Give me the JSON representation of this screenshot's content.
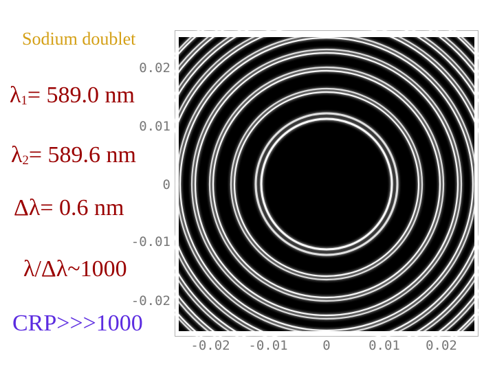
{
  "left_panel": {
    "title": "Sodium doublet",
    "lambda1": {
      "symbol": "λ",
      "sub": "1",
      "rest": "= 589.0 nm"
    },
    "lambda2": {
      "symbol": "λ",
      "sub": "2",
      "rest": "= 589.6 nm"
    },
    "delta": "Δλ= 0.6 nm",
    "ratio": "λ/Δλ~1000",
    "crp": "CRP>>>1000"
  },
  "plot": {
    "y_ticks": [
      "0.02",
      "0.01",
      "0",
      "-0.01",
      "-0.02"
    ],
    "x_ticks": [
      "-0.02",
      "-0.01",
      "0",
      "0.01",
      "0.02"
    ]
  },
  "colors": {
    "title": "#d4a017",
    "formula": "#9a0000",
    "crp": "#5b2be0",
    "ring": "#ffffff",
    "background": "#000000"
  }
}
